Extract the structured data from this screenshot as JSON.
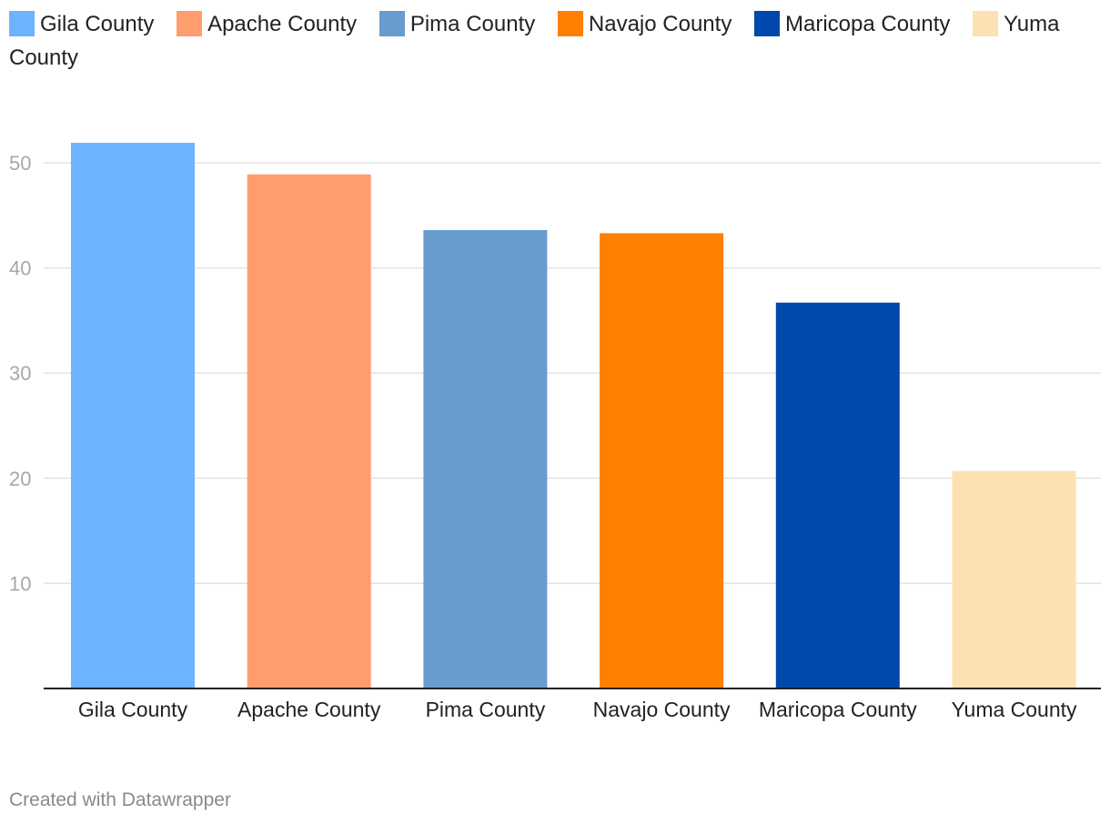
{
  "chart_data": {
    "type": "bar",
    "categories": [
      "Gila County",
      "Apache County",
      "Pima County",
      "Navajo County",
      "Maricopa County",
      "Yuma County"
    ],
    "values": [
      51.9,
      48.9,
      43.6,
      43.3,
      36.7,
      20.7
    ],
    "colors": [
      "#6cb4ff",
      "#ff9d6f",
      "#689ccc",
      "#ff7f00",
      "#0048ab",
      "#fde1b3"
    ],
    "ylim": [
      0,
      55
    ],
    "yticks": [
      10,
      20,
      30,
      40,
      50
    ],
    "grid": true,
    "legend": "top",
    "title": "",
    "xlabel": "",
    "ylabel": ""
  },
  "legend_items": [
    "Gila County",
    "Apache County",
    "Pima County",
    "Navajo County",
    "Maricopa County",
    "Yuma County"
  ],
  "credit": "Created with Datawrapper"
}
